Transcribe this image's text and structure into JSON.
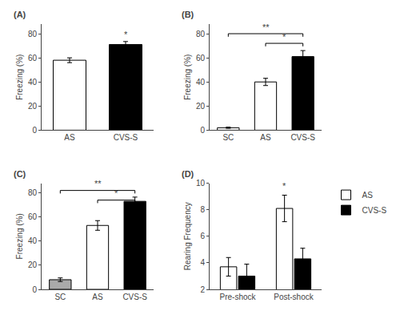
{
  "chart_data": [
    {
      "type": "bar",
      "title": "(A)",
      "categories": [
        "AS",
        "CVS-S"
      ],
      "values": [
        58,
        71
      ],
      "errors": [
        2,
        2.5
      ],
      "colors": [
        "white",
        "black"
      ],
      "ylabel": "Freezing (%)",
      "ylim": [
        0,
        88
      ],
      "yticks": [
        0,
        20,
        40,
        60,
        80
      ],
      "grid": false,
      "annotations": [
        {
          "text": "*",
          "x": "CVS-S",
          "y": 74
        }
      ]
    },
    {
      "type": "bar",
      "title": "(B)",
      "categories": [
        "SC",
        "AS",
        "CVS-S"
      ],
      "values": [
        2,
        40,
        61
      ],
      "errors": [
        0.5,
        3,
        5
      ],
      "colors": [
        "white",
        "white",
        "black"
      ],
      "ylabel": "Freezing (%)",
      "ylim": [
        0,
        88
      ],
      "yticks": [
        0,
        20,
        40,
        60,
        80
      ],
      "grid": false,
      "annotations": [
        {
          "text": "**",
          "x1": "SC",
          "x2": "CVS-S",
          "y": 80
        },
        {
          "text": "*",
          "x1": "AS",
          "x2": "CVS-S",
          "y": 72
        }
      ]
    },
    {
      "type": "bar",
      "title": "(C)",
      "categories": [
        "SC",
        "AS",
        "CVS-S"
      ],
      "values": [
        8,
        53,
        73
      ],
      "errors": [
        1.5,
        4,
        3.5
      ],
      "colors": [
        "#aaaaaa",
        "white",
        "black"
      ],
      "ylabel": "Freezing (%)",
      "ylim": [
        0,
        88
      ],
      "yticks": [
        0,
        20,
        40,
        60,
        80
      ],
      "grid": false,
      "annotations": [
        {
          "text": "**",
          "x1": "SC",
          "x2": "CVS-S",
          "y": 82
        },
        {
          "text": "*",
          "x1": "AS",
          "x2": "CVS-S",
          "y": 74
        }
      ]
    },
    {
      "type": "bar",
      "title": "(D)",
      "categories": [
        "Pre-shock",
        "Post-shock"
      ],
      "series": [
        {
          "name": "AS",
          "values": [
            3.7,
            8.1
          ],
          "errors": [
            0.7,
            1.0
          ],
          "color": "white"
        },
        {
          "name": "CVS-S",
          "values": [
            3.0,
            4.3
          ],
          "errors": [
            0.9,
            0.8
          ],
          "color": "black"
        }
      ],
      "ylabel": "Rearing Frequency",
      "ylim": [
        2,
        10
      ],
      "yticks": [
        2,
        4,
        6,
        8,
        10
      ],
      "grid": false,
      "legend": "right",
      "annotations": [
        {
          "text": "*",
          "x": "Post-shock",
          "series": "AS",
          "y": 9.3
        }
      ]
    }
  ]
}
